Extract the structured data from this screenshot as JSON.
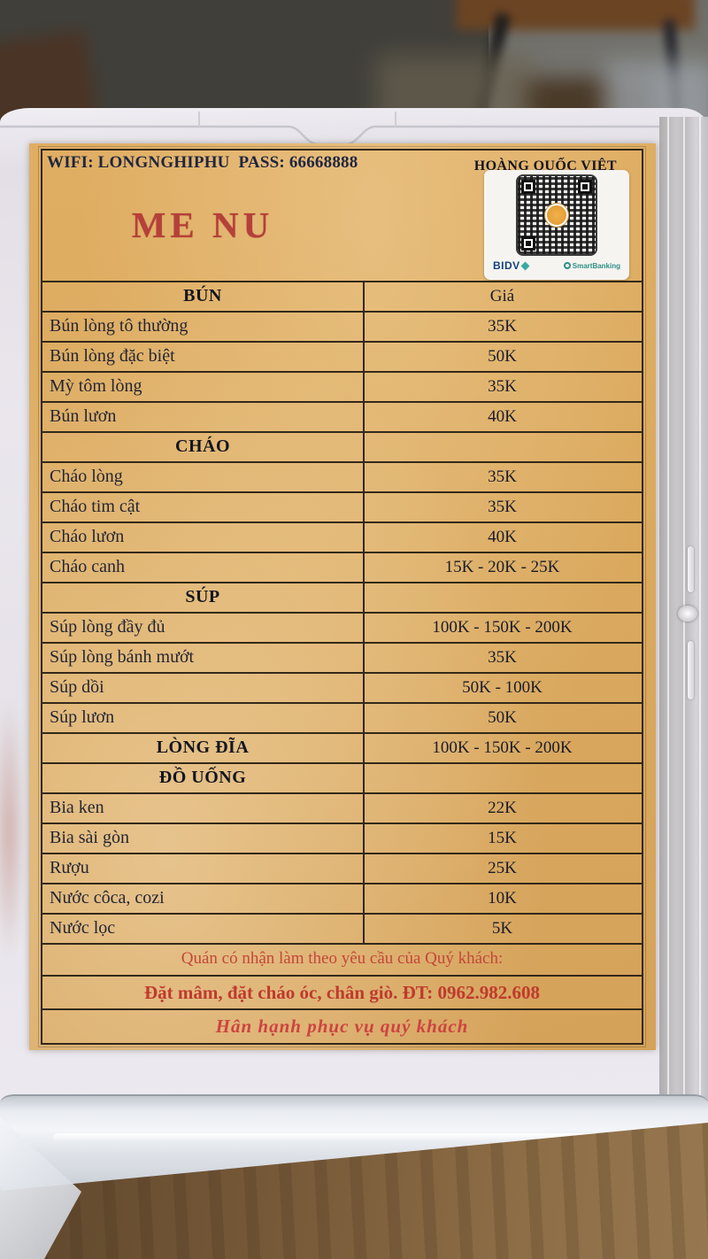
{
  "header": {
    "wifi": "WIFI: LONGNGHIPHU  PASS: 66668888",
    "location": "HOÀNG QUỐC VIỆT",
    "title": "ME NU"
  },
  "qr": {
    "bank": "BIDV",
    "app": "SmartBanking"
  },
  "menu": {
    "price_header": "Giá",
    "rows": [
      {
        "label": "BÚN",
        "price": "Giá",
        "section": true
      },
      {
        "label": "Bún lòng tô thường",
        "price": "35K",
        "section": false
      },
      {
        "label": "Bún lòng đặc biệt",
        "price": "50K",
        "section": false
      },
      {
        "label": "Mỳ tôm lòng",
        "price": "35K",
        "section": false
      },
      {
        "label": "Bún lươn",
        "price": "40K",
        "section": false
      },
      {
        "label": "CHÁO",
        "price": "",
        "section": true
      },
      {
        "label": "Cháo lòng",
        "price": "35K",
        "section": false
      },
      {
        "label": "Cháo tim cật",
        "price": "35K",
        "section": false
      },
      {
        "label": "Cháo lươn",
        "price": "40K",
        "section": false
      },
      {
        "label": "Cháo canh",
        "price": "15K - 20K - 25K",
        "section": false
      },
      {
        "label": "SÚP",
        "price": "",
        "section": true
      },
      {
        "label": "Súp lòng đầy đủ",
        "price": "100K - 150K - 200K",
        "section": false
      },
      {
        "label": "Súp lòng bánh mướt",
        "price": "35K",
        "section": false
      },
      {
        "label": "Súp dồi",
        "price": "50K - 100K",
        "section": false
      },
      {
        "label": "Súp lươn",
        "price": "50K",
        "section": false
      },
      {
        "label": "LÒNG ĐĨA",
        "price": "100K - 150K - 200K",
        "section": true
      },
      {
        "label": "ĐỒ UỐNG",
        "price": "",
        "section": true
      },
      {
        "label": "Bia ken",
        "price": "22K",
        "section": false
      },
      {
        "label": "Bia sài gòn",
        "price": "15K",
        "section": false
      },
      {
        "label": "Rượu",
        "price": "25K",
        "section": false
      },
      {
        "label": "Nước côca, cozi",
        "price": "10K",
        "section": false
      },
      {
        "label": "Nước lọc",
        "price": "5K",
        "section": false
      }
    ]
  },
  "footer": {
    "note": "Quán có nhận làm theo yêu cầu của Quý khách:",
    "order_line": "Đặt mâm, đặt cháo óc, chân giò. ĐT: 0962.982.608",
    "thanks": "Hân hạnh phục vụ quý khách"
  },
  "colors": {
    "paper": "#e0ae63",
    "accent_red": "#b5403a",
    "table_line": "#33291a",
    "text": "#232634"
  }
}
